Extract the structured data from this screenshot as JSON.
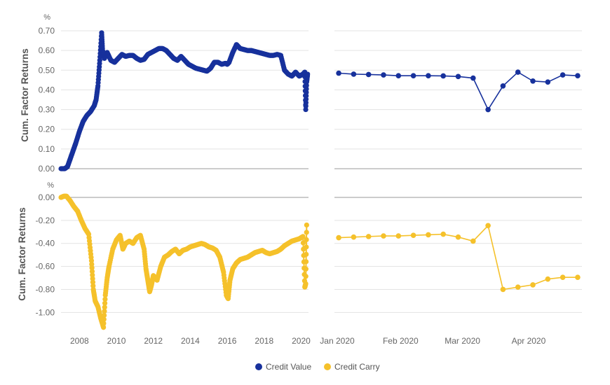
{
  "colors": {
    "value": "#17319c",
    "carry": "#f5c12b",
    "grid": "#e3e3e3",
    "axis": "#9a9a9a"
  },
  "legend": [
    {
      "label": "Credit Value",
      "color": "#17319c"
    },
    {
      "label": "Credit Carry",
      "color": "#f5c12b"
    }
  ],
  "chart_data": [
    {
      "panel": "top-left",
      "type": "scatter",
      "ylabel": "Cum. Factor Returns",
      "unit": "%",
      "ylim": [
        0,
        0.7
      ],
      "yticks": [
        "0.70",
        "0.60",
        "0.50",
        "0.40",
        "0.30",
        "0.20",
        "0.10",
        "0.00"
      ],
      "xlim": [
        2007,
        2020.4
      ],
      "xticks": [
        "2008",
        "2010",
        "2012",
        "2014",
        "2016",
        "2018",
        "2020"
      ],
      "series": [
        {
          "name": "Credit Value",
          "x": [
            2007.0,
            2007.2,
            2007.35,
            2007.5,
            2007.65,
            2007.8,
            2008.0,
            2008.2,
            2008.4,
            2008.6,
            2008.8,
            2008.9,
            2009.0,
            2009.1,
            2009.2,
            2009.25,
            2009.35,
            2009.5,
            2009.7,
            2009.9,
            2010.1,
            2010.3,
            2010.5,
            2010.7,
            2010.9,
            2011.1,
            2011.3,
            2011.5,
            2011.7,
            2011.9,
            2012.1,
            2012.3,
            2012.5,
            2012.7,
            2012.9,
            2013.1,
            2013.3,
            2013.5,
            2013.7,
            2013.9,
            2014.1,
            2014.3,
            2014.5,
            2014.7,
            2014.9,
            2015.1,
            2015.3,
            2015.5,
            2015.7,
            2015.9,
            2016.0,
            2016.1,
            2016.3,
            2016.5,
            2016.7,
            2016.9,
            2017.1,
            2017.3,
            2017.5,
            2017.7,
            2017.9,
            2018.1,
            2018.3,
            2018.5,
            2018.7,
            2018.9,
            2019.1,
            2019.3,
            2019.5,
            2019.7,
            2019.9,
            2020.1,
            2020.2,
            2020.25,
            2020.3,
            2020.35
          ],
          "values": [
            0.0,
            0.0,
            0.01,
            0.05,
            0.09,
            0.13,
            0.19,
            0.24,
            0.27,
            0.29,
            0.32,
            0.35,
            0.42,
            0.55,
            0.69,
            0.6,
            0.56,
            0.59,
            0.55,
            0.54,
            0.56,
            0.58,
            0.57,
            0.575,
            0.575,
            0.56,
            0.55,
            0.555,
            0.58,
            0.59,
            0.6,
            0.61,
            0.61,
            0.6,
            0.58,
            0.56,
            0.55,
            0.57,
            0.55,
            0.53,
            0.52,
            0.51,
            0.505,
            0.5,
            0.495,
            0.51,
            0.54,
            0.54,
            0.53,
            0.535,
            0.53,
            0.54,
            0.59,
            0.63,
            0.61,
            0.605,
            0.6,
            0.6,
            0.595,
            0.59,
            0.585,
            0.58,
            0.575,
            0.575,
            0.58,
            0.575,
            0.5,
            0.48,
            0.47,
            0.49,
            0.47,
            0.48,
            0.49,
            0.3,
            0.44,
            0.48
          ]
        }
      ]
    },
    {
      "panel": "top-right",
      "type": "line",
      "ylim": [
        0,
        0.7
      ],
      "x": [
        "2020-01-03",
        "2020-01-10",
        "2020-01-17",
        "2020-01-24",
        "2020-01-31",
        "2020-02-07",
        "2020-02-14",
        "2020-02-21",
        "2020-02-28",
        "2020-03-06",
        "2020-03-13",
        "2020-03-20",
        "2020-03-27",
        "2020-04-03",
        "2020-04-10",
        "2020-04-17",
        "2020-04-24"
      ],
      "xticks": [
        "Jan 2020",
        "Feb 2020",
        "Mar 2020",
        "Apr 2020"
      ],
      "xtick_dates": [
        "2020-01-01",
        "2020-02-01",
        "2020-03-01",
        "2020-04-01"
      ],
      "xlim": [
        "2020-01-01",
        "2020-04-26"
      ],
      "series": [
        {
          "name": "Credit Value",
          "values": [
            0.485,
            0.48,
            0.478,
            0.476,
            0.472,
            0.472,
            0.472,
            0.471,
            0.468,
            0.46,
            0.3,
            0.42,
            0.49,
            0.445,
            0.44,
            0.476,
            0.472
          ]
        }
      ]
    },
    {
      "panel": "bottom-left",
      "type": "scatter",
      "ylabel": "Cum. Factor Returns",
      "unit": "%",
      "ylim": [
        -1.15,
        0.0
      ],
      "yticks": [
        "0.00",
        "-0.20",
        "-0.40",
        "-0.60",
        "-0.80",
        "-1.00"
      ],
      "xlim": [
        2007,
        2020.4
      ],
      "xticks": [
        "2008",
        "2010",
        "2012",
        "2014",
        "2016",
        "2018",
        "2020"
      ],
      "series": [
        {
          "name": "Credit Carry",
          "x": [
            2007.0,
            2007.15,
            2007.3,
            2007.5,
            2007.7,
            2007.9,
            2008.1,
            2008.3,
            2008.5,
            2008.65,
            2008.75,
            2008.85,
            2009.0,
            2009.15,
            2009.3,
            2009.4,
            2009.5,
            2009.6,
            2009.8,
            2010.0,
            2010.2,
            2010.35,
            2010.5,
            2010.7,
            2010.9,
            2011.1,
            2011.3,
            2011.5,
            2011.6,
            2011.7,
            2011.8,
            2011.9,
            2012.0,
            2012.2,
            2012.4,
            2012.6,
            2012.8,
            2013.0,
            2013.2,
            2013.4,
            2013.6,
            2013.8,
            2014.0,
            2014.2,
            2014.4,
            2014.6,
            2014.8,
            2015.0,
            2015.2,
            2015.4,
            2015.6,
            2015.8,
            2015.95,
            2016.05,
            2016.15,
            2016.3,
            2016.5,
            2016.7,
            2016.9,
            2017.1,
            2017.3,
            2017.5,
            2017.7,
            2017.9,
            2018.1,
            2018.3,
            2018.5,
            2018.7,
            2018.9,
            2019.1,
            2019.3,
            2019.5,
            2019.7,
            2019.9,
            2020.1,
            2020.2,
            2020.25,
            2020.3
          ],
          "values": [
            0.0,
            0.01,
            0.01,
            -0.03,
            -0.08,
            -0.12,
            -0.2,
            -0.27,
            -0.32,
            -0.55,
            -0.8,
            -0.9,
            -0.95,
            -1.05,
            -1.13,
            -0.85,
            -0.7,
            -0.6,
            -0.45,
            -0.37,
            -0.33,
            -0.45,
            -0.4,
            -0.38,
            -0.4,
            -0.35,
            -0.33,
            -0.45,
            -0.62,
            -0.72,
            -0.82,
            -0.76,
            -0.68,
            -0.72,
            -0.6,
            -0.52,
            -0.5,
            -0.47,
            -0.45,
            -0.49,
            -0.46,
            -0.45,
            -0.43,
            -0.42,
            -0.41,
            -0.4,
            -0.41,
            -0.43,
            -0.44,
            -0.46,
            -0.52,
            -0.65,
            -0.85,
            -0.88,
            -0.72,
            -0.62,
            -0.57,
            -0.54,
            -0.53,
            -0.52,
            -0.5,
            -0.48,
            -0.47,
            -0.46,
            -0.48,
            -0.49,
            -0.48,
            -0.47,
            -0.45,
            -0.42,
            -0.4,
            -0.38,
            -0.37,
            -0.36,
            -0.34,
            -0.78,
            -0.75,
            -0.24
          ]
        }
      ]
    },
    {
      "panel": "bottom-right",
      "type": "line",
      "ylim": [
        -1.15,
        0.0
      ],
      "x": [
        "2020-01-03",
        "2020-01-10",
        "2020-01-17",
        "2020-01-24",
        "2020-01-31",
        "2020-02-07",
        "2020-02-14",
        "2020-02-21",
        "2020-02-28",
        "2020-03-06",
        "2020-03-13",
        "2020-03-20",
        "2020-03-27",
        "2020-04-03",
        "2020-04-10",
        "2020-04-17",
        "2020-04-24"
      ],
      "xticks": [
        "Jan 2020",
        "Feb 2020",
        "Mar 2020",
        "Apr 2020"
      ],
      "xtick_dates": [
        "2020-01-01",
        "2020-02-01",
        "2020-03-01",
        "2020-04-01"
      ],
      "xlim": [
        "2020-01-01",
        "2020-04-26"
      ],
      "series": [
        {
          "name": "Credit Carry",
          "values": [
            -0.35,
            -0.345,
            -0.34,
            -0.335,
            -0.335,
            -0.33,
            -0.325,
            -0.32,
            -0.345,
            -0.38,
            -0.245,
            -0.8,
            -0.78,
            -0.76,
            -0.71,
            -0.695,
            -0.695
          ]
        }
      ]
    }
  ]
}
